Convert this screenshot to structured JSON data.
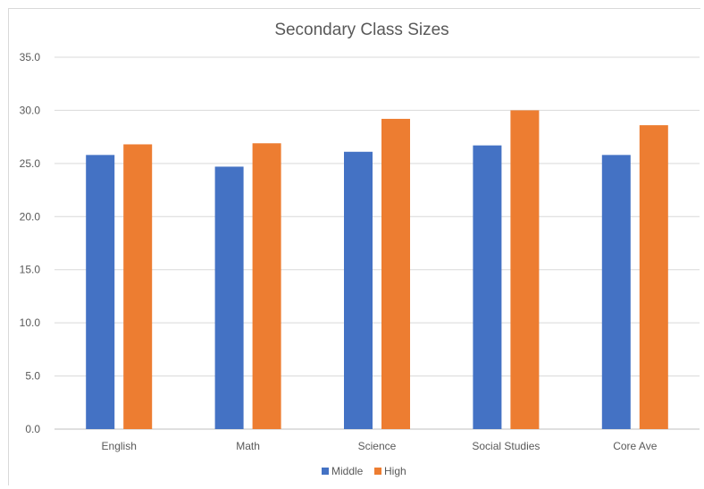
{
  "chart_data": {
    "type": "bar",
    "title": "Secondary Class Sizes",
    "categories": [
      "English",
      "Math",
      "Science",
      "Social Studies",
      "Core Ave"
    ],
    "series": [
      {
        "name": "Middle",
        "color": "#4472c4",
        "values": [
          25.8,
          24.7,
          26.1,
          26.7,
          25.8
        ]
      },
      {
        "name": "High",
        "color": "#ed7d31",
        "values": [
          26.8,
          26.9,
          29.2,
          30.0,
          28.6
        ]
      }
    ],
    "ylim": [
      0,
      35
    ],
    "yticks": [
      "0.0",
      "5.0",
      "10.0",
      "15.0",
      "20.0",
      "25.0",
      "30.0",
      "35.0"
    ],
    "grid": true,
    "legend": "bottom"
  }
}
